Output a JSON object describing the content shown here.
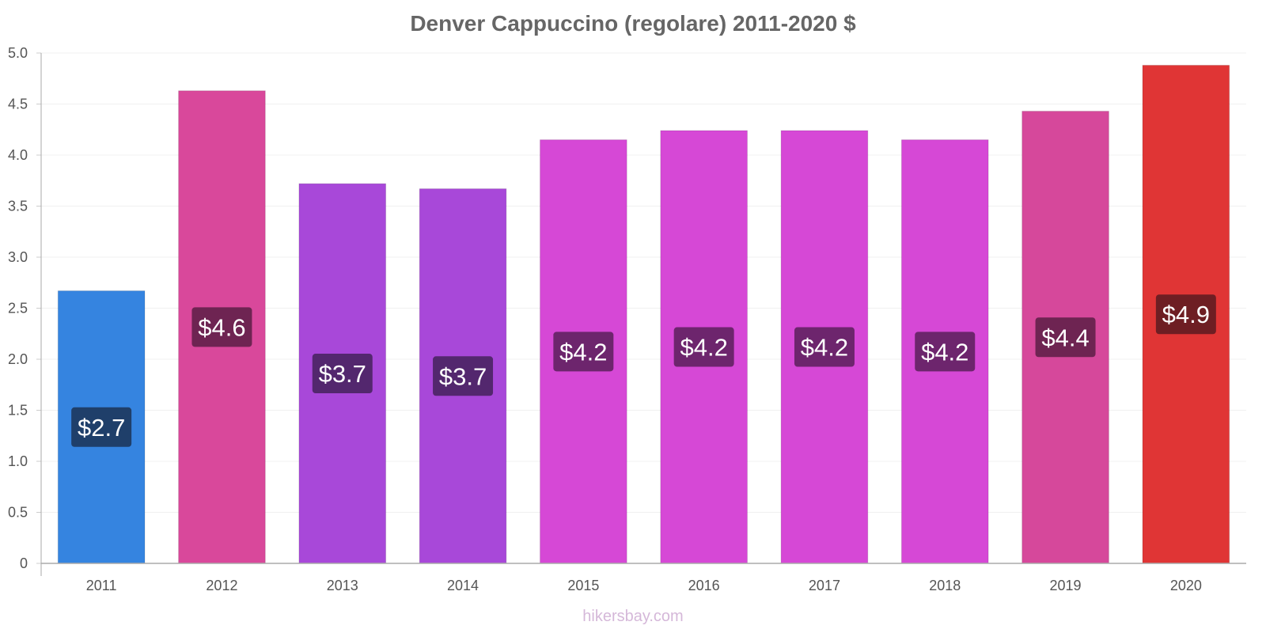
{
  "chart_data": {
    "type": "bar",
    "title": "Denver Cappuccino (regolare) 2011-2020 $",
    "xlabel": "",
    "ylabel": "",
    "categories": [
      "2011",
      "2012",
      "2013",
      "2014",
      "2015",
      "2016",
      "2017",
      "2018",
      "2019",
      "2020"
    ],
    "values": [
      2.67,
      4.63,
      3.72,
      3.67,
      4.15,
      4.24,
      4.24,
      4.15,
      4.43,
      4.88
    ],
    "data_labels": [
      "$2.7",
      "$4.6",
      "$3.7",
      "$3.7",
      "$4.2",
      "$4.2",
      "$4.2",
      "$4.2",
      "$4.4",
      "$4.9"
    ],
    "ylim": [
      0,
      5.0
    ],
    "y_ticks": [
      "0",
      "0.5",
      "1.0",
      "1.5",
      "2.0",
      "2.5",
      "3.0",
      "3.5",
      "4.0",
      "4.5",
      "5.0"
    ],
    "y_tick_values": [
      0,
      0.5,
      1.0,
      1.5,
      2.0,
      2.5,
      3.0,
      3.5,
      4.0,
      4.5,
      5.0
    ],
    "grid": true,
    "legend": "none",
    "bar_colors": [
      "#3584e0",
      "#d9489b",
      "#a848d9",
      "#a848d9",
      "#d648d6",
      "#d648d6",
      "#d648d6",
      "#d648d6",
      "#d6489b",
      "#e03535"
    ],
    "label_box_colors": [
      "#1f3f6a",
      "#6e2452",
      "#53276e",
      "#53276e",
      "#6d256d",
      "#6d256d",
      "#6d256d",
      "#6d256d",
      "#6e2452",
      "#6e1e23"
    ]
  },
  "footer": {
    "source": "hikersbay.com"
  }
}
